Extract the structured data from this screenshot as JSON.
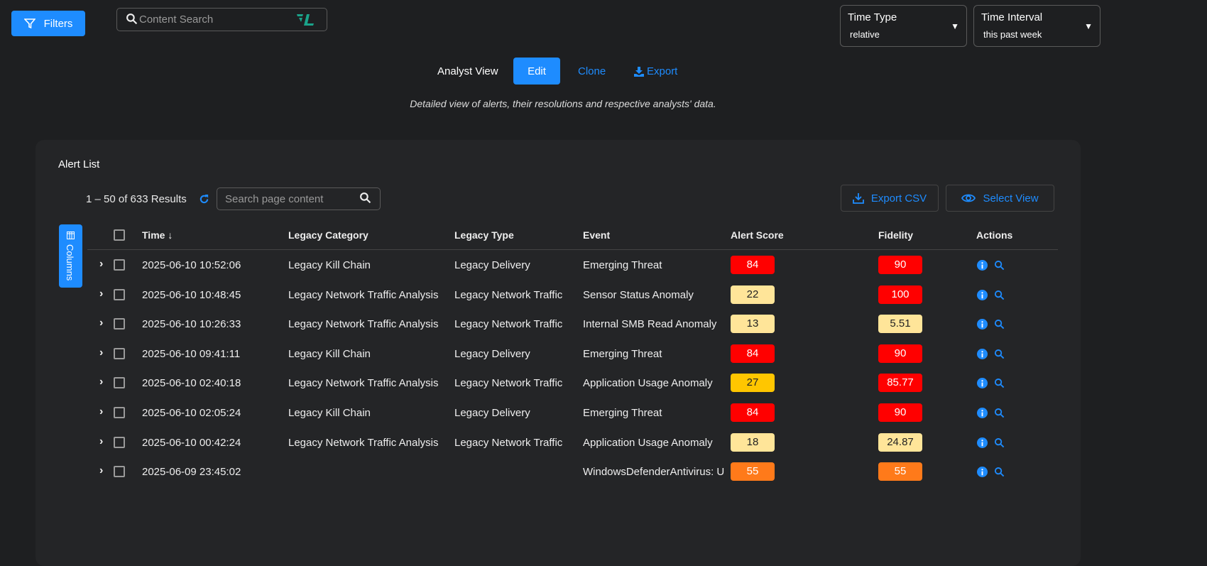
{
  "topbar": {
    "filters_label": "Filters",
    "search_placeholder": "Content Search",
    "time_type": {
      "label": "Time Type",
      "value": "relative"
    },
    "time_interval": {
      "label": "Time Interval",
      "value": "this past week"
    }
  },
  "view": {
    "title": "Analyst View",
    "edit": "Edit",
    "clone": "Clone",
    "export": "Export",
    "description": "Detailed view of alerts, their resolutions and respective analysts' data."
  },
  "alert_list": {
    "title": "Alert List",
    "results": "1 – 50 of 633 Results",
    "search_placeholder": "Search page content",
    "export_csv": "Export CSV",
    "select_view": "Select View",
    "columns": "Columns",
    "headers": [
      "Time",
      "Legacy Category",
      "Legacy Type",
      "Event",
      "Alert Score",
      "Fidelity",
      "Actions"
    ],
    "rows": [
      {
        "time": "2025-06-10 10:52:06",
        "category": "Legacy Kill Chain",
        "type": "Legacy Delivery",
        "event": "Emerging Threat",
        "score": "84",
        "score_color": "#ff0000",
        "fidelity": "90",
        "fidelity_color": "#ff0000"
      },
      {
        "time": "2025-06-10 10:48:45",
        "category": "Legacy Network Traffic Analysis",
        "type": "Legacy Network Traffic",
        "event": "Sensor Status Anomaly",
        "score": "22",
        "score_color": "#ffe599",
        "fidelity": "100",
        "fidelity_color": "#ff0000"
      },
      {
        "time": "2025-06-10 10:26:33",
        "category": "Legacy Network Traffic Analysis",
        "type": "Legacy Network Traffic",
        "event": "Internal SMB Read Anomaly",
        "score": "13",
        "score_color": "#ffe599",
        "fidelity": "5.51",
        "fidelity_color": "#ffe599"
      },
      {
        "time": "2025-06-10 09:41:11",
        "category": "Legacy Kill Chain",
        "type": "Legacy Delivery",
        "event": "Emerging Threat",
        "score": "84",
        "score_color": "#ff0000",
        "fidelity": "90",
        "fidelity_color": "#ff0000"
      },
      {
        "time": "2025-06-10 02:40:18",
        "category": "Legacy Network Traffic Analysis",
        "type": "Legacy Network Traffic",
        "event": "Application Usage Anomaly",
        "score": "27",
        "score_color": "#ffc600",
        "fidelity": "85.77",
        "fidelity_color": "#ff0000"
      },
      {
        "time": "2025-06-10 02:05:24",
        "category": "Legacy Kill Chain",
        "type": "Legacy Delivery",
        "event": "Emerging Threat",
        "score": "84",
        "score_color": "#ff0000",
        "fidelity": "90",
        "fidelity_color": "#ff0000"
      },
      {
        "time": "2025-06-10 00:42:24",
        "category": "Legacy Network Traffic Analysis",
        "type": "Legacy Network Traffic",
        "event": "Application Usage Anomaly",
        "score": "18",
        "score_color": "#ffe599",
        "fidelity": "24.87",
        "fidelity_color": "#ffe599"
      },
      {
        "time": "2025-06-09 23:45:02",
        "category": "",
        "type": "",
        "event": "WindowsDefenderAntivirus: U",
        "score": "55",
        "score_color": "#ff7a1a",
        "fidelity": "55",
        "fidelity_color": "#ff7a1a"
      }
    ]
  },
  "colors": {
    "accent": "#1e8cff",
    "logo": "#1aa38a"
  }
}
